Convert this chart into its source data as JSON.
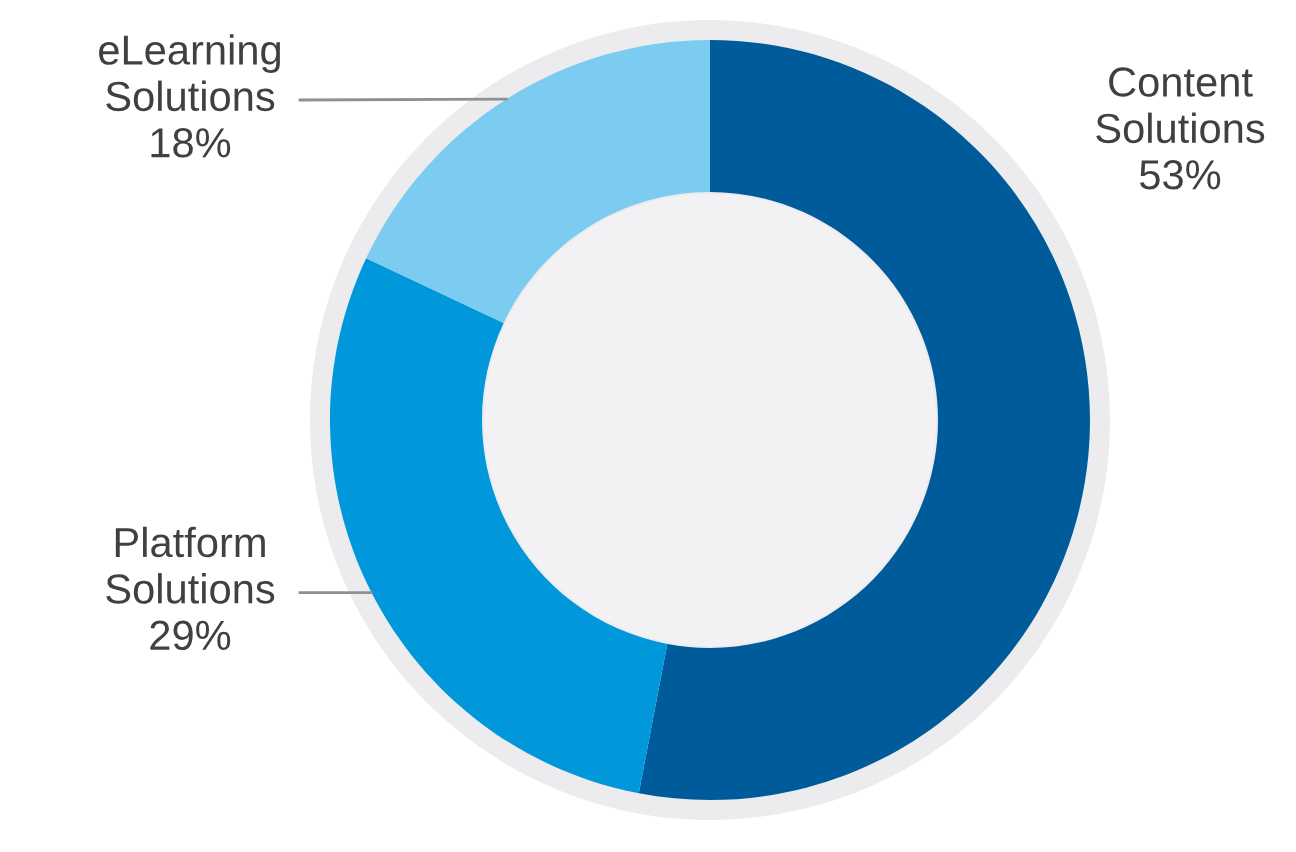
{
  "chart_data": {
    "type": "donut",
    "categories": [
      "Content\nSolutions",
      "Platform\nSolutions",
      "eLearning\nSolutions"
    ],
    "values": [
      53,
      29,
      18
    ],
    "colors": [
      "#005b9a",
      "#0098da",
      "#7ccbf0"
    ],
    "value_labels": [
      "53%",
      "29%",
      "18%"
    ],
    "legend": false
  }
}
